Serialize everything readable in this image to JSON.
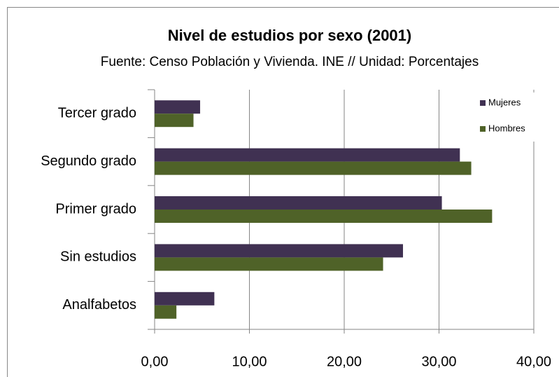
{
  "chart_data": {
    "type": "hbar",
    "title": "Nivel de estudios por sexo (2001)",
    "subtitle": "Fuente: Censo Población y Vivienda. INE // Unidad: Porcentajes",
    "categories": [
      "Tercer grado",
      "Segundo grado",
      "Primer grado",
      "Sin estudios",
      "Analfabetos"
    ],
    "series": [
      {
        "name": "Mujeres",
        "color": "#403152",
        "values": [
          4.8,
          32.2,
          30.3,
          26.2,
          6.3
        ]
      },
      {
        "name": "Hombres",
        "color": "#4f6228",
        "values": [
          4.1,
          33.4,
          35.6,
          24.1,
          2.3
        ]
      }
    ],
    "xlim": [
      0,
      40
    ],
    "xticks": [
      {
        "value": 0,
        "label": "0,00"
      },
      {
        "value": 10,
        "label": "10,00"
      },
      {
        "value": 20,
        "label": "20,00"
      },
      {
        "value": 30,
        "label": "30,00"
      },
      {
        "value": 40,
        "label": "40,00"
      }
    ],
    "grid": true,
    "legend": "top-right"
  }
}
